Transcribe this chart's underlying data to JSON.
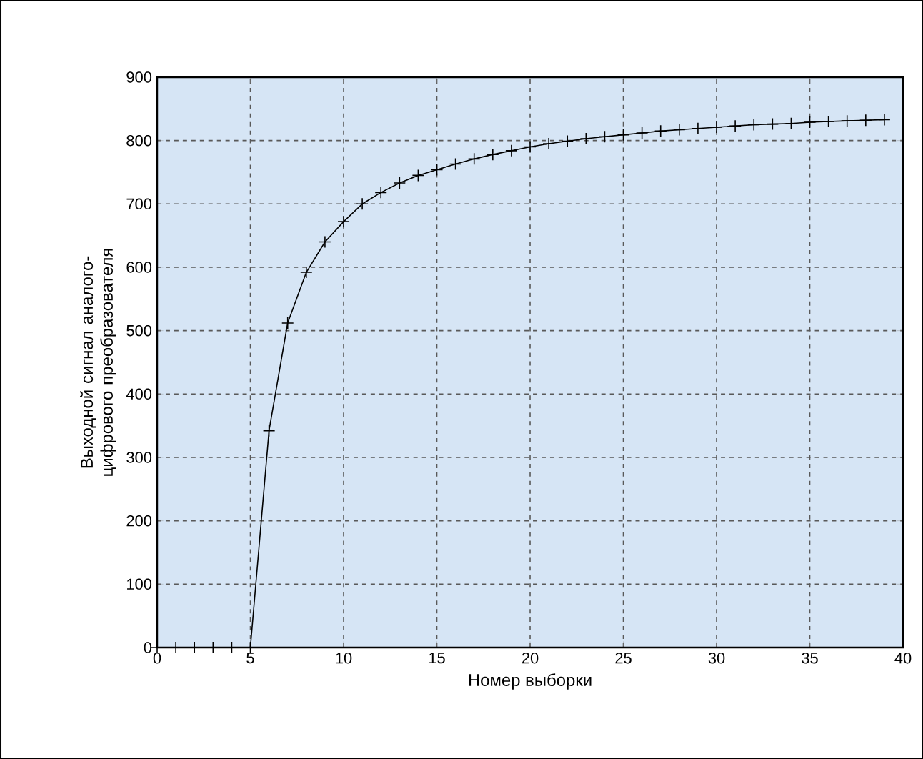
{
  "chart_data": {
    "type": "line",
    "xlabel": "Номер выборки",
    "ylabel": "Выходной сигнал аналого-цифрового преобразователя",
    "x": [
      0,
      1,
      2,
      3,
      4,
      5,
      6,
      7,
      8,
      9,
      10,
      11,
      12,
      13,
      14,
      15,
      16,
      17,
      18,
      19,
      20,
      21,
      22,
      23,
      24,
      25,
      26,
      27,
      28,
      29,
      30,
      31,
      32,
      33,
      34,
      35,
      36,
      37,
      38,
      39
    ],
    "series": [
      {
        "color": "#000000",
        "values": [
          0,
          0,
          0,
          0,
          0,
          0,
          342,
          512,
          592,
          640,
          672,
          700,
          718,
          733,
          745,
          754,
          763,
          771,
          778,
          784,
          790,
          795,
          799,
          803,
          806,
          809,
          812,
          815,
          817,
          819,
          821,
          823,
          825,
          826,
          827,
          829,
          830,
          831,
          832,
          833
        ]
      }
    ],
    "xlim": [
      0,
      40
    ],
    "xticks": [
      0,
      5,
      10,
      15,
      20,
      25,
      30,
      35,
      40
    ],
    "ylim": [
      0,
      900
    ],
    "yticks": [
      0,
      100,
      200,
      300,
      400,
      500,
      600,
      700,
      800,
      900
    ],
    "grid": true,
    "marker": "cross",
    "line_style": "solid"
  }
}
